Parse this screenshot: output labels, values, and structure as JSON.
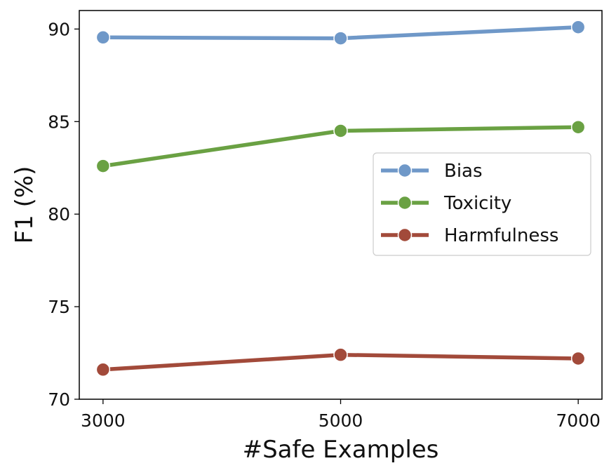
{
  "chart_data": {
    "type": "line",
    "title": "",
    "xlabel": "#Safe Examples",
    "ylabel": "F1  (%)",
    "x": [
      3000,
      5000,
      7000
    ],
    "x_tick_labels": [
      "3000",
      "5000",
      "7000"
    ],
    "xlim": [
      2800,
      7200
    ],
    "ylim": [
      70,
      91
    ],
    "y_ticks": [
      70,
      75,
      80,
      85,
      90
    ],
    "y_tick_labels": [
      "70",
      "75",
      "80",
      "85",
      "90"
    ],
    "grid": false,
    "legend_position": "center-right",
    "series": [
      {
        "name": "Bias",
        "values": [
          89.55,
          89.5,
          90.1
        ],
        "color": "#6f98c8"
      },
      {
        "name": "Toxicity",
        "values": [
          82.6,
          84.5,
          84.7
        ],
        "color": "#6aa143"
      },
      {
        "name": "Harmfulness",
        "values": [
          71.6,
          72.4,
          72.2
        ],
        "color": "#a24a3a"
      }
    ]
  }
}
